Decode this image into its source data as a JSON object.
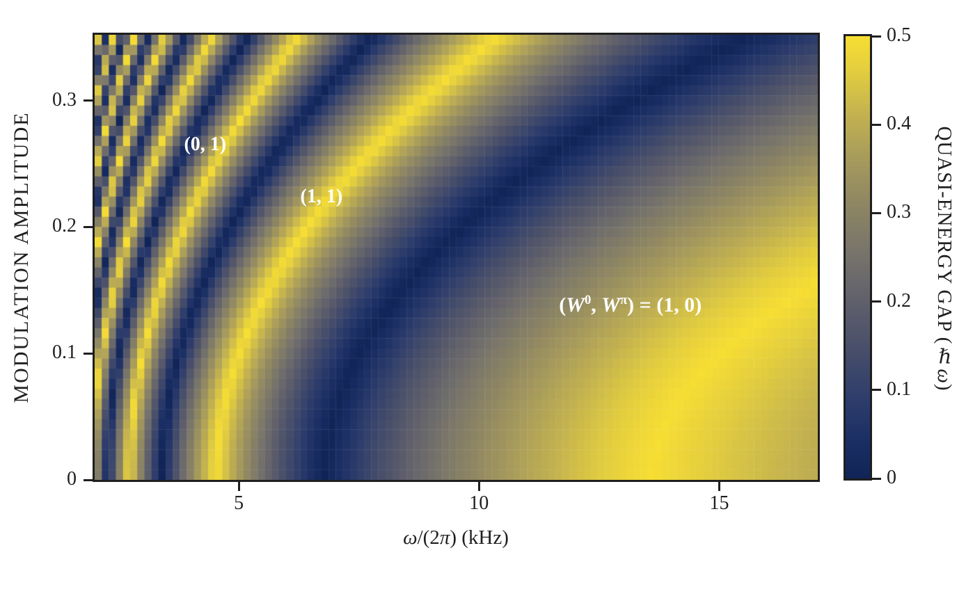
{
  "figure": {
    "kind": "scientific phase-diagram figure",
    "background": "#ffffff"
  },
  "chart_data": {
    "type": "heatmap",
    "title": "",
    "xlabel": "*ω*/(2*π*) (kHz)",
    "ylabel": "MODULATION AMPLITUDE",
    "colorbar_label": "QUASI-ENERGY GAP (*ℏω*)",
    "x_range": [
      2.0,
      17.05
    ],
    "y_range": [
      0.0,
      0.352
    ],
    "z_range": [
      0.0,
      0.5
    ],
    "grid_on": false,
    "x_ticks": [
      {
        "value": 5,
        "label": "5"
      },
      {
        "value": 10,
        "label": "10"
      },
      {
        "value": 15,
        "label": "15"
      }
    ],
    "y_ticks": [
      {
        "value": 0.0,
        "label": "0"
      },
      {
        "value": 0.1,
        "label": "0.1"
      },
      {
        "value": 0.2,
        "label": "0.2"
      },
      {
        "value": 0.3,
        "label": "0.3"
      }
    ],
    "colorbar_ticks": [
      {
        "value": 0.0,
        "label": "0"
      },
      {
        "value": 0.1,
        "label": "0.1"
      },
      {
        "value": 0.2,
        "label": "0.2"
      },
      {
        "value": 0.3,
        "label": "0.3"
      },
      {
        "value": 0.4,
        "label": "0.4"
      },
      {
        "value": 0.5,
        "label": "0.5"
      }
    ],
    "colormap": {
      "name": "cividis",
      "stops": [
        [
          0.0,
          "#112457"
        ],
        [
          0.08,
          "#1a2e64"
        ],
        [
          0.18,
          "#2e3d6b"
        ],
        [
          0.3,
          "#4a506a"
        ],
        [
          0.4,
          "#60606b"
        ],
        [
          0.5,
          "#75726b"
        ],
        [
          0.62,
          "#8e8663"
        ],
        [
          0.72,
          "#a69a5c"
        ],
        [
          0.82,
          "#c2b150"
        ],
        [
          0.92,
          "#e2cd3f"
        ],
        [
          1.0,
          "#f7de33"
        ]
      ]
    },
    "mesh": {
      "cols": 102,
      "rows": 44
    },
    "model": {
      "description": "Quasi-energy gap (in units of ℏω) of a periodically modulated two-band system: gap(ω,A) = distance of u = 2E(A)/ω to the nearest integer, with effective energy E(A) = E0·(1 + c·A²). Dark curves are multi-photon resonances n·ω = 2E(A) that separate Floquet topological phases labeled by the winding numbers (W⁰, Wπ).",
      "E0_kHz": 3.4,
      "c": 10.5,
      "gap_min": 0.0,
      "gap_max": 0.5
    },
    "annotations": [
      {
        "text": "(0, 1)",
        "x": 4.3,
        "y": 0.265,
        "color": "#ffffff",
        "size": "small"
      },
      {
        "text": "(1, 1)",
        "x": 6.72,
        "y": 0.224,
        "color": "#ffffff",
        "size": "small"
      },
      {
        "text": "(*W*^0, *W*^π) = (1, 0)",
        "x": 13.15,
        "y": 0.138,
        "color": "#ffffff",
        "size": "big"
      }
    ]
  },
  "styles": {
    "frame_color": "#1f1f1f",
    "tick_color": "#1f1f1f",
    "annotation_color": "#ffffff"
  }
}
